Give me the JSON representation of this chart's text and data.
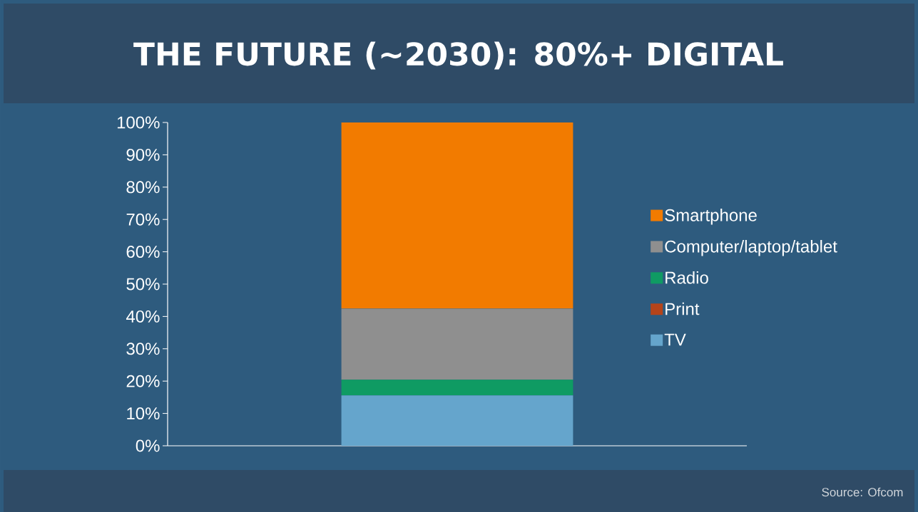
{
  "chart_data": {
    "type": "bar",
    "title": "THE FUTURE (~2030): 80%+ DIGITAL",
    "stacked": true,
    "categories": [
      null
    ],
    "series": [
      {
        "name": "TV",
        "color": "#65a5cc",
        "values": [
          15.6
        ]
      },
      {
        "name": "Print",
        "color": "#b5441a",
        "values": [
          0
        ]
      },
      {
        "name": "Radio",
        "color": "#0f9b63",
        "values": [
          4.8
        ]
      },
      {
        "name": "Computer/laptop/tablet",
        "color": "#8f8f8f",
        "values": [
          22.0
        ]
      },
      {
        "name": "Smartphone",
        "color": "#f27b00",
        "values": [
          57.6
        ]
      }
    ],
    "ylim": [
      0,
      100
    ],
    "yticks": [
      {
        "value": 0,
        "label": "0%"
      },
      {
        "value": 10,
        "label": "10%"
      },
      {
        "value": 20,
        "label": "20%"
      },
      {
        "value": 30,
        "label": "30%"
      },
      {
        "value": 40,
        "label": "40%"
      },
      {
        "value": 50,
        "label": "50%"
      },
      {
        "value": 60,
        "label": "60%"
      },
      {
        "value": 70,
        "label": "70%"
      },
      {
        "value": 80,
        "label": "80%"
      },
      {
        "value": 90,
        "label": "90%"
      },
      {
        "value": 100,
        "label": "100%"
      }
    ],
    "legend": "right",
    "grid": false,
    "annotations": [
      "Source: Ofcom"
    ]
  }
}
